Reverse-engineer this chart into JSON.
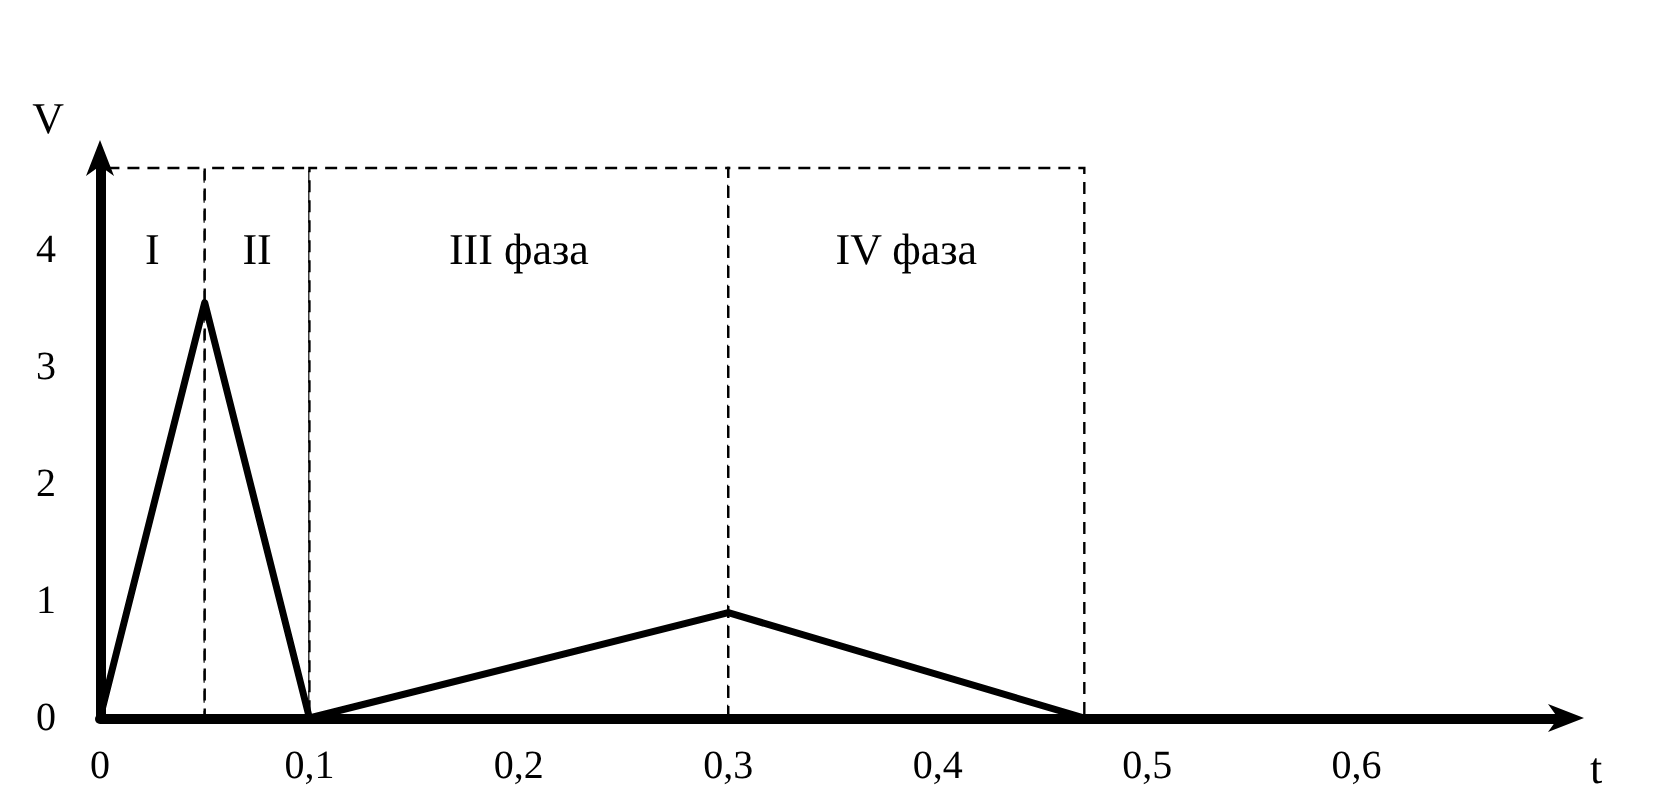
{
  "chart_data": {
    "type": "line",
    "xlabel": "t",
    "ylabel": "V",
    "x": [
      0,
      0.05,
      0.1,
      0.3,
      0.47
    ],
    "series": [
      {
        "color": "#000000",
        "values": [
          0,
          3.55,
          0,
          0.9,
          0
        ]
      }
    ],
    "xlim": [
      0,
      0.7
    ],
    "ylim": [
      0,
      4.7
    ],
    "xticks": [
      0,
      {
        "value": 0.1,
        "label": "0,1"
      },
      {
        "value": 0.2,
        "label": "0,2"
      },
      {
        "value": 0.3,
        "label": "0,3"
      },
      {
        "value": 0.4,
        "label": "0,4"
      },
      {
        "value": 0.5,
        "label": "0,5"
      },
      {
        "value": 0.6,
        "label": "0,6"
      }
    ],
    "yticks": [
      0,
      1,
      2,
      3,
      4
    ],
    "bands": [
      {
        "axis": "x",
        "from": 0,
        "to": 0.05,
        "label": "I",
        "color": "#ffffff"
      },
      {
        "axis": "x",
        "from": 0.05,
        "to": 0.1,
        "label": "II",
        "color": "#ffffff"
      },
      {
        "axis": "x",
        "from": 0.1,
        "to": 0.3,
        "label": "III фаза",
        "color": "#ffffff"
      },
      {
        "axis": "x",
        "from": 0.3,
        "to": 0.47,
        "label": "IV фаза",
        "color": "#ffffff"
      }
    ],
    "grid": false,
    "marker": "none",
    "line_style": "solid"
  }
}
